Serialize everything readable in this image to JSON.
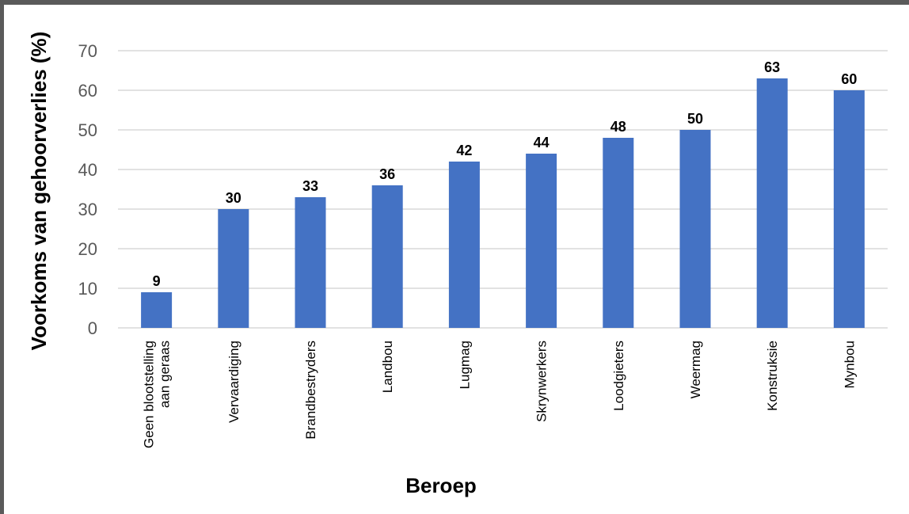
{
  "chart_data": {
    "type": "bar",
    "categories": [
      [
        "Geen blootstelling",
        "aan geraas"
      ],
      [
        "Vervaardiging"
      ],
      [
        "Brandbestryders"
      ],
      [
        "Landbou"
      ],
      [
        "Lugmag"
      ],
      [
        "Skrynwerkers"
      ],
      [
        "Loodgieters"
      ],
      [
        "Weermag"
      ],
      [
        "Konstruksie"
      ],
      [
        "Mynbou"
      ]
    ],
    "values": [
      9,
      30,
      33,
      36,
      42,
      44,
      48,
      50,
      63,
      60
    ],
    "data_labels": [
      "9",
      "30",
      "33",
      "36",
      "42",
      "44",
      "48",
      "50",
      "63",
      "60"
    ],
    "xlabel": "Beroep",
    "ylabel": "Voorkoms van gehoorverlies (%)",
    "ylim": [
      0,
      70
    ],
    "yticks": [
      0,
      10,
      20,
      30,
      40,
      50,
      60,
      70
    ],
    "grid": true,
    "legend": "none",
    "bar_color": "#4472c4"
  }
}
